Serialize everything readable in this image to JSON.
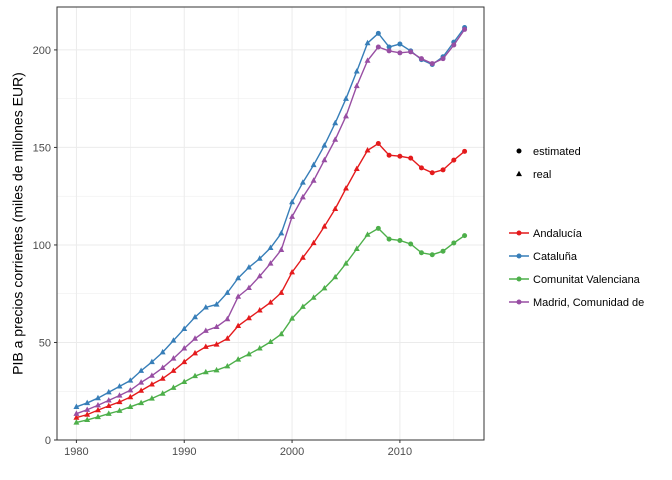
{
  "chart_data": {
    "type": "line",
    "xlabel": "",
    "ylabel": "PIB a precios corrientes (miles de millones EUR)",
    "xlim": [
      1978.2,
      2017.8
    ],
    "ylim": [
      0,
      222
    ],
    "xticks": [
      1980,
      1990,
      2000,
      2010
    ],
    "yticks": [
      0,
      50,
      100,
      150,
      200
    ],
    "grid": true,
    "legend_position": "right",
    "shape_legend": {
      "items": [
        {
          "label": "estimated",
          "shape": "circle"
        },
        {
          "label": "real",
          "shape": "triangle"
        }
      ]
    },
    "real_until": 2007,
    "x": [
      1980,
      1981,
      1982,
      1983,
      1984,
      1985,
      1986,
      1987,
      1988,
      1989,
      1990,
      1991,
      1992,
      1993,
      1994,
      1995,
      1996,
      1997,
      1998,
      1999,
      2000,
      2001,
      2002,
      2003,
      2004,
      2005,
      2006,
      2007,
      2008,
      2009,
      2010,
      2011,
      2012,
      2013,
      2014,
      2015,
      2016
    ],
    "series": [
      {
        "name": "Andalucía",
        "color": "#E41A1C",
        "values": [
          11.5,
          13.0,
          15.3,
          17.5,
          19.5,
          22.0,
          25.3,
          28.5,
          31.5,
          35.5,
          40.0,
          44.5,
          47.8,
          49.0,
          52.0,
          58.5,
          62.5,
          66.5,
          70.5,
          75.5,
          86.0,
          93.5,
          101.0,
          109.5,
          118.5,
          129.0,
          139.0,
          148.5,
          152.0,
          146.0,
          145.5,
          144.5,
          139.5,
          137.0,
          138.5,
          143.5,
          148.0
        ]
      },
      {
        "name": "Cataluña",
        "color": "#377EB8",
        "values": [
          17.0,
          19.0,
          21.5,
          24.5,
          27.5,
          30.5,
          35.5,
          40.0,
          45.0,
          51.0,
          57.0,
          63.0,
          68.0,
          69.5,
          75.5,
          83.0,
          88.5,
          93.0,
          98.5,
          106.0,
          122.0,
          132.0,
          141.0,
          151.0,
          162.5,
          175.0,
          189.0,
          203.5,
          208.5,
          201.5,
          203.0,
          199.5,
          195.0,
          192.5,
          196.5,
          204.0,
          211.5
        ]
      },
      {
        "name": "Comunitat Valenciana",
        "color": "#4DAF4A",
        "values": [
          9.0,
          10.3,
          11.8,
          13.5,
          15.0,
          17.0,
          19.0,
          21.3,
          23.8,
          26.8,
          29.8,
          32.8,
          34.8,
          35.8,
          37.8,
          41.3,
          44.0,
          47.0,
          50.3,
          54.3,
          62.3,
          68.3,
          73.0,
          77.8,
          83.5,
          90.5,
          98.0,
          105.3,
          108.5,
          103.0,
          102.3,
          100.5,
          96.0,
          95.0,
          96.8,
          101.0,
          104.8
        ]
      },
      {
        "name": "Madrid, Comunidad de",
        "color": "#984EA3",
        "values": [
          13.5,
          15.5,
          17.8,
          20.3,
          22.8,
          25.5,
          29.5,
          33.0,
          37.0,
          41.8,
          47.0,
          52.0,
          56.0,
          58.0,
          62.0,
          73.5,
          78.0,
          84.0,
          90.5,
          97.5,
          114.5,
          124.5,
          133.0,
          143.5,
          154.0,
          166.0,
          181.5,
          194.5,
          201.5,
          199.5,
          198.5,
          199.0,
          195.5,
          193.0,
          195.5,
          202.5,
          210.5
        ]
      }
    ]
  }
}
